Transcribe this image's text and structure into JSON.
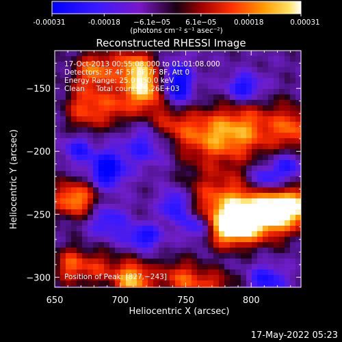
{
  "chart_data": {
    "type": "heatmap",
    "title": "Reconstructed RHESSI Image",
    "xlabel": "Heliocentric X (arcsec)",
    "ylabel": "Heliocentric Y (arcsec)",
    "xlim": [
      650,
      838
    ],
    "ylim": [
      -308,
      -120
    ],
    "x_ticks": [
      650,
      700,
      750,
      800
    ],
    "x_tick_labels": [
      "650",
      "700",
      "750",
      "800"
    ],
    "y_ticks": [
      -150,
      -200,
      -250,
      -300
    ],
    "y_tick_labels": [
      "−150",
      "−200",
      "−250",
      "−300"
    ],
    "colorbar": {
      "min": -0.00031,
      "max": 0.00031,
      "tick_values": [
        -0.00031,
        -0.00018,
        -6.1e-05,
        6.1e-05,
        0.00018,
        0.00031
      ],
      "tick_labels": [
        "-0.00031",
        "-0.00018",
        "−6.1e−05",
        "6.1e−05",
        "0.00018",
        "0.00031"
      ],
      "units_label": "(photons cm⁻² s⁻¹ asec⁻²)"
    },
    "annotations": [
      "17-Oct-2013 00:55:08.000 to 01:01:08.000",
      "Detectors: 3F 4F 5F 6F 7F 8F, Att 0",
      "Energy Range: 25.0 - 50.0 keV",
      "Clean     Total counts: 9.26E+03"
    ],
    "peak_label": "Position of Peak: [827,−243]",
    "peak_position": [
      827,
      -243
    ],
    "timestamp": "17-May-2022 05:23",
    "sources": [
      {
        "x": 832,
        "y": -243,
        "amp": 1.0,
        "sx": 28,
        "sy": 10
      },
      {
        "x": 806,
        "y": -254,
        "amp": 0.95,
        "sx": 22,
        "sy": 12
      },
      {
        "x": 783,
        "y": -262,
        "amp": 0.85,
        "sx": 14,
        "sy": 10
      },
      {
        "x": 775,
        "y": -235,
        "amp": 0.55,
        "sx": 20,
        "sy": 18
      },
      {
        "x": 770,
        "y": -188,
        "amp": 0.75,
        "sx": 22,
        "sy": 14
      },
      {
        "x": 800,
        "y": -180,
        "amp": 0.55,
        "sx": 20,
        "sy": 16
      },
      {
        "x": 832,
        "y": -182,
        "amp": 0.6,
        "sx": 10,
        "sy": 12
      },
      {
        "x": 738,
        "y": -175,
        "amp": 0.5,
        "sx": 12,
        "sy": 12
      },
      {
        "x": 720,
        "y": -150,
        "amp": 1.0,
        "sx": 12,
        "sy": 12
      },
      {
        "x": 710,
        "y": -132,
        "amp": 0.75,
        "sx": 12,
        "sy": 10
      },
      {
        "x": 680,
        "y": -135,
        "amp": 0.75,
        "sx": 10,
        "sy": 10
      },
      {
        "x": 672,
        "y": -165,
        "amp": 0.6,
        "sx": 10,
        "sy": 14
      },
      {
        "x": 695,
        "y": -165,
        "amp": 0.55,
        "sx": 12,
        "sy": 12
      },
      {
        "x": 665,
        "y": -238,
        "amp": 0.9,
        "sx": 13,
        "sy": 10
      },
      {
        "x": 710,
        "y": -302,
        "amp": 1.0,
        "sx": 10,
        "sy": 10
      },
      {
        "x": 680,
        "y": -292,
        "amp": 0.55,
        "sx": 14,
        "sy": 10
      },
      {
        "x": 745,
        "y": -300,
        "amp": 0.6,
        "sx": 12,
        "sy": 10
      },
      {
        "x": 770,
        "y": -305,
        "amp": 0.5,
        "sx": 14,
        "sy": 8
      },
      {
        "x": 660,
        "y": -290,
        "amp": 0.5,
        "sx": 8,
        "sy": 10
      },
      {
        "x": 690,
        "y": -215,
        "amp": -0.9,
        "sx": 9,
        "sy": 10
      },
      {
        "x": 742,
        "y": -148,
        "amp": -1.0,
        "sx": 9,
        "sy": 13
      },
      {
        "x": 760,
        "y": -260,
        "amp": -0.8,
        "sx": 8,
        "sy": 8
      },
      {
        "x": 742,
        "y": -243,
        "amp": -0.7,
        "sx": 8,
        "sy": 10
      },
      {
        "x": 718,
        "y": -268,
        "amp": -0.65,
        "sx": 10,
        "sy": 7
      },
      {
        "x": 795,
        "y": -150,
        "amp": -0.7,
        "sx": 10,
        "sy": 8
      },
      {
        "x": 810,
        "y": -222,
        "amp": -0.6,
        "sx": 8,
        "sy": 8
      },
      {
        "x": 828,
        "y": -212,
        "amp": -0.55,
        "sx": 8,
        "sy": 8
      },
      {
        "x": 812,
        "y": -302,
        "amp": -0.6,
        "sx": 10,
        "sy": 8
      },
      {
        "x": 668,
        "y": -198,
        "amp": -0.55,
        "sx": 8,
        "sy": 8
      },
      {
        "x": 720,
        "y": -195,
        "amp": -0.5,
        "sx": 14,
        "sy": 12
      },
      {
        "x": 690,
        "y": -255,
        "amp": -0.5,
        "sx": 10,
        "sy": 10
      }
    ],
    "base_level": -0.2,
    "grid_size": 0
  }
}
